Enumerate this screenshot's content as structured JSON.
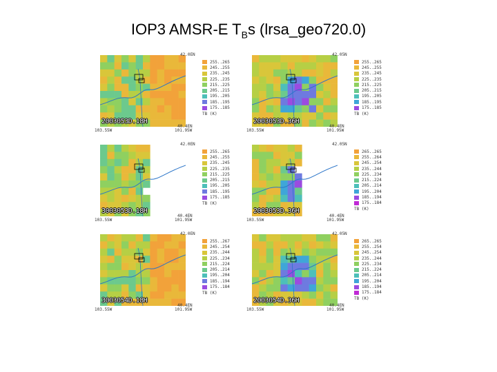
{
  "header": {
    "title_pre": "IOP3 AMSR-E T",
    "title_sub": "B",
    "title_post": "s (lrsa_geo720.0)"
  },
  "colors": {
    "h_palette": [
      "#f2a23a",
      "#e9b83a",
      "#d9c63a",
      "#b6cf45",
      "#8fd060",
      "#6cc98d",
      "#4dbfb9",
      "#3fa6d8",
      "#6e7ae0",
      "#9b4be0",
      "#c02ad6"
    ],
    "v_palette": [
      "#f2a23a",
      "#e9b83a",
      "#d9c63a",
      "#b6cf45",
      "#8fd060",
      "#6cc98d",
      "#4dbfb9",
      "#3fa6d8",
      "#6e7ae0",
      "#9b4be0",
      "#c02ad6"
    ]
  },
  "panels": [
    {
      "stamp": "2003053D.18H",
      "top_lat": "42.0EN",
      "bot_lat": "40.4EN",
      "left_lon": "103.55W",
      "right_lon": "101.95W",
      "legend": [
        "255..265",
        "245..255",
        "235..245",
        "225..235",
        "215..225",
        "205..215",
        "195..205",
        "185..195",
        "175..185"
      ],
      "unit": "TB (K)"
    },
    {
      "stamp": "2003053D.36H",
      "top_lat": "42.05N",
      "bot_lat": "40.4EN",
      "left_lon": "103.55W",
      "right_lon": "101.95W",
      "legend": [
        "255..265",
        "245..255",
        "235..245",
        "225..235",
        "215..225",
        "205..215",
        "195..205",
        "185..195",
        "175..185"
      ],
      "unit": "TB (K)"
    },
    {
      "stamp": "3003053D.18H",
      "top_lat": "42.0EN",
      "bot_lat": "40.4EN",
      "left_lon": "103.55W",
      "right_lon": "101.95W",
      "legend": [
        "255..265",
        "245..255",
        "235..245",
        "225..235",
        "215..225",
        "205..215",
        "195..205",
        "185..195",
        "175..185"
      ],
      "unit": "TB (K)"
    },
    {
      "stamp": "2003053D.36H",
      "top_lat": "42.05N",
      "bot_lat": "40.4EN",
      "left_lon": "103.55W",
      "right_lon": "101.95W",
      "legend": [
        "265..265",
        "255..264",
        "245..254",
        "235..244",
        "225..234",
        "215..224",
        "205..214",
        "195..204",
        "185..194",
        "175..184"
      ],
      "unit": "TB (K)"
    },
    {
      "stamp": "3003054D.18H",
      "top_lat": "42.0EN",
      "bot_lat": "40.4EN",
      "left_lon": "103.55W",
      "right_lon": "101.95W",
      "legend": [
        "255..267",
        "245..254",
        "235..244",
        "225..234",
        "215..224",
        "205..214",
        "195..204",
        "185..194",
        "175..184"
      ],
      "unit": "TB (K)"
    },
    {
      "stamp": "2003054D.36H",
      "top_lat": "42.05N",
      "bot_lat": "40.4EN",
      "left_lon": "103.55W",
      "right_lon": "101.95W",
      "legend": [
        "265..265",
        "255..254",
        "245..254",
        "235..244",
        "225..234",
        "215..224",
        "205..214",
        "195..204",
        "185..194",
        "175..184"
      ],
      "unit": "TB (K)"
    }
  ]
}
